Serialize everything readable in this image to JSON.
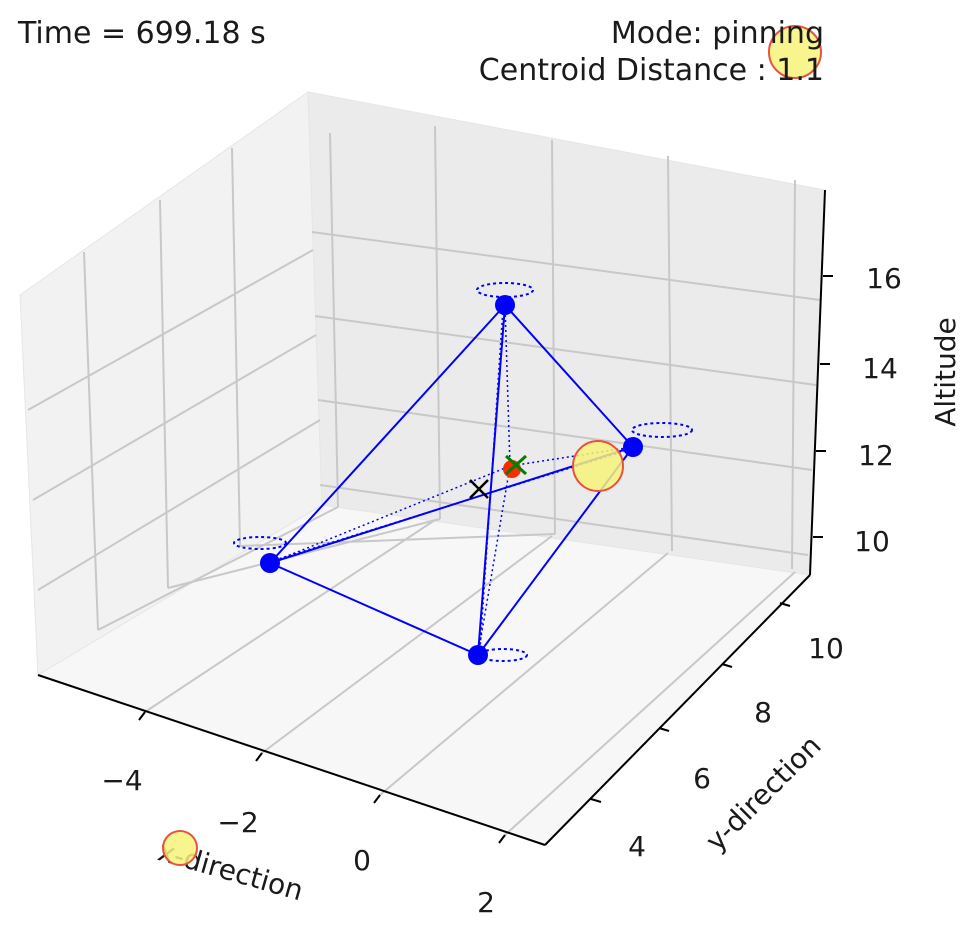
{
  "time_label": "Time = 699.18 s",
  "mode_label": "Mode: pinning",
  "centroid_label": "Centroid Distance : 1.1",
  "chart_data": {
    "type": "scatter",
    "projection": "3d",
    "xlabel": "x-direction",
    "ylabel": "y-direction",
    "zlabel": "Altitude",
    "x_ticks": [
      "−4",
      "−2",
      "0",
      "2"
    ],
    "y_ticks": [
      "4",
      "6",
      "8",
      "10"
    ],
    "z_ticks": [
      "10",
      "12",
      "14",
      "16"
    ],
    "grid": true,
    "colors": {
      "agents": "#0000ff",
      "links": "#0000ff",
      "obstacle_fill": "#f7f27a",
      "obstacle_edge": "#e8523f",
      "target": "#ff0000",
      "centroid_marker": "#000000",
      "target_marker": "#008000"
    }
  }
}
